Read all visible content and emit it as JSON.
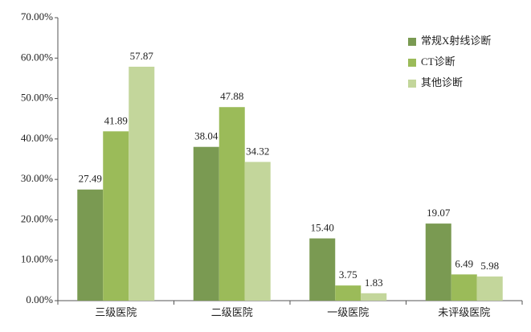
{
  "chart_data": {
    "type": "bar",
    "categories": [
      "三级医院",
      "二级医院",
      "一级医院",
      "未评级医院"
    ],
    "series": [
      {
        "name": "常规X射线诊断",
        "color": "#7a9a52",
        "values": [
          27.49,
          38.04,
          15.4,
          19.07
        ],
        "value_labels": [
          "27.49",
          "38.04",
          "15.40",
          "19.07"
        ]
      },
      {
        "name": "CT诊断",
        "color": "#9bbb59",
        "values": [
          41.89,
          47.88,
          3.75,
          6.49
        ],
        "value_labels": [
          "41.89",
          "47.88",
          "3.75",
          "6.49"
        ]
      },
      {
        "name": "其他诊断",
        "color": "#c3d69b",
        "values": [
          57.87,
          34.32,
          1.83,
          5.98
        ],
        "value_labels": [
          "57.87",
          "34.32",
          "1.83",
          "5.98"
        ]
      }
    ],
    "ylim": [
      0,
      70
    ],
    "yticks": [
      {
        "value": 0,
        "label": "0.00%"
      },
      {
        "value": 10,
        "label": "10.00%"
      },
      {
        "value": 20,
        "label": "20.00%"
      },
      {
        "value": 30,
        "label": "30.00%"
      },
      {
        "value": 40,
        "label": "40.00%"
      },
      {
        "value": 50,
        "label": "50.00%"
      },
      {
        "value": 60,
        "label": "60.00%"
      },
      {
        "value": 70,
        "label": "70.00%"
      }
    ],
    "grid": false,
    "legend": "upper-right"
  }
}
